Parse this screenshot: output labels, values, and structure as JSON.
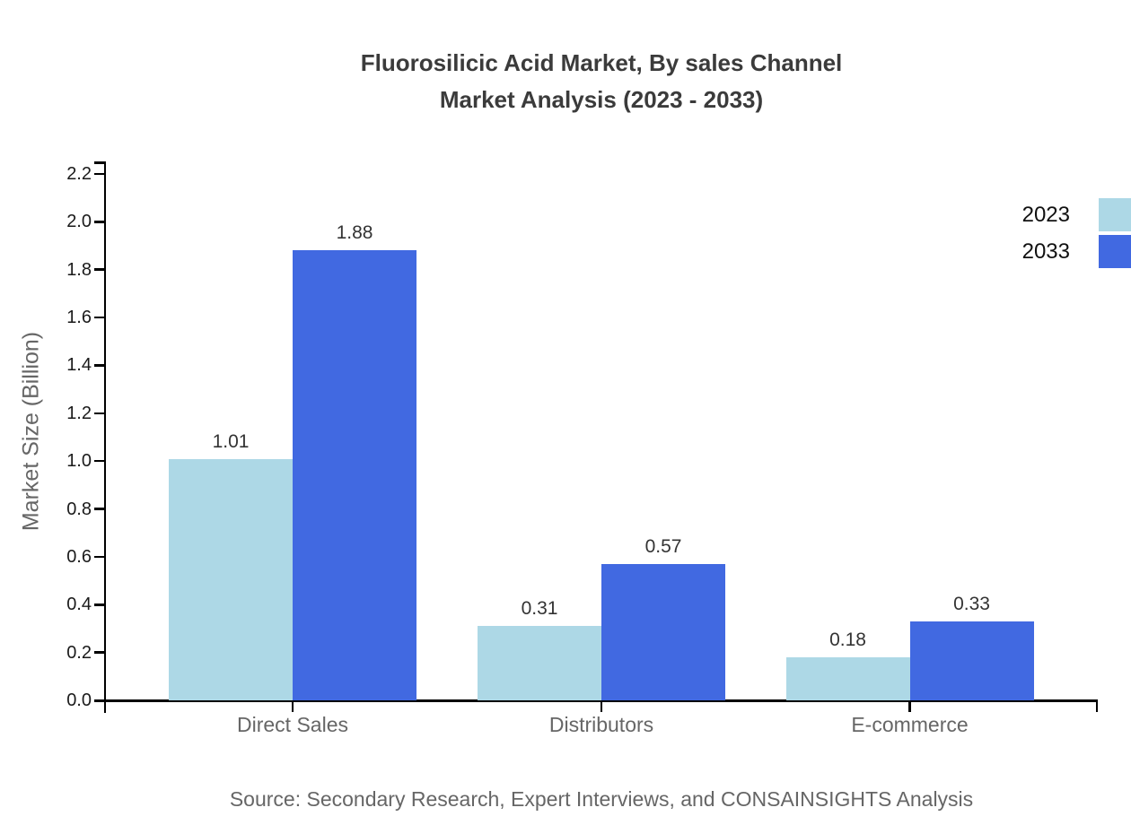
{
  "title": {
    "line1": "Fluorosilicic Acid Market, By sales Channel",
    "line2": "Market Analysis (2023 - 2033)"
  },
  "source": "Source: Secondary Research, Expert Interviews, and CONSAINSIGHTS Analysis",
  "colors": {
    "series_2023": "#ADD8E6",
    "series_2033": "#4169E1",
    "axis": "#000000",
    "title_text": "#3b3b3b",
    "value_label_text": "#333333",
    "muted_text": "#666666"
  },
  "chart_data": {
    "type": "bar",
    "title": "Fluorosilicic Acid Market, By sales Channel Market Analysis (2023 - 2033)",
    "categories": [
      "Direct Sales",
      "Distributors",
      "E-commerce"
    ],
    "series": [
      {
        "name": "2023",
        "color": "#ADD8E6",
        "values": [
          1.01,
          0.31,
          0.18
        ]
      },
      {
        "name": "2033",
        "color": "#4169E1",
        "values": [
          1.88,
          0.57,
          0.33
        ]
      }
    ],
    "xlabel": "",
    "ylabel": "Market Size (Billion)",
    "ylim": [
      0,
      2.2
    ],
    "yticks": [
      0.0,
      0.2,
      0.4,
      0.6,
      0.8,
      1.0,
      1.2,
      1.4,
      1.6,
      1.8,
      2.0,
      2.2
    ],
    "grid": false,
    "legend_position": "top-right",
    "value_labels": true
  }
}
